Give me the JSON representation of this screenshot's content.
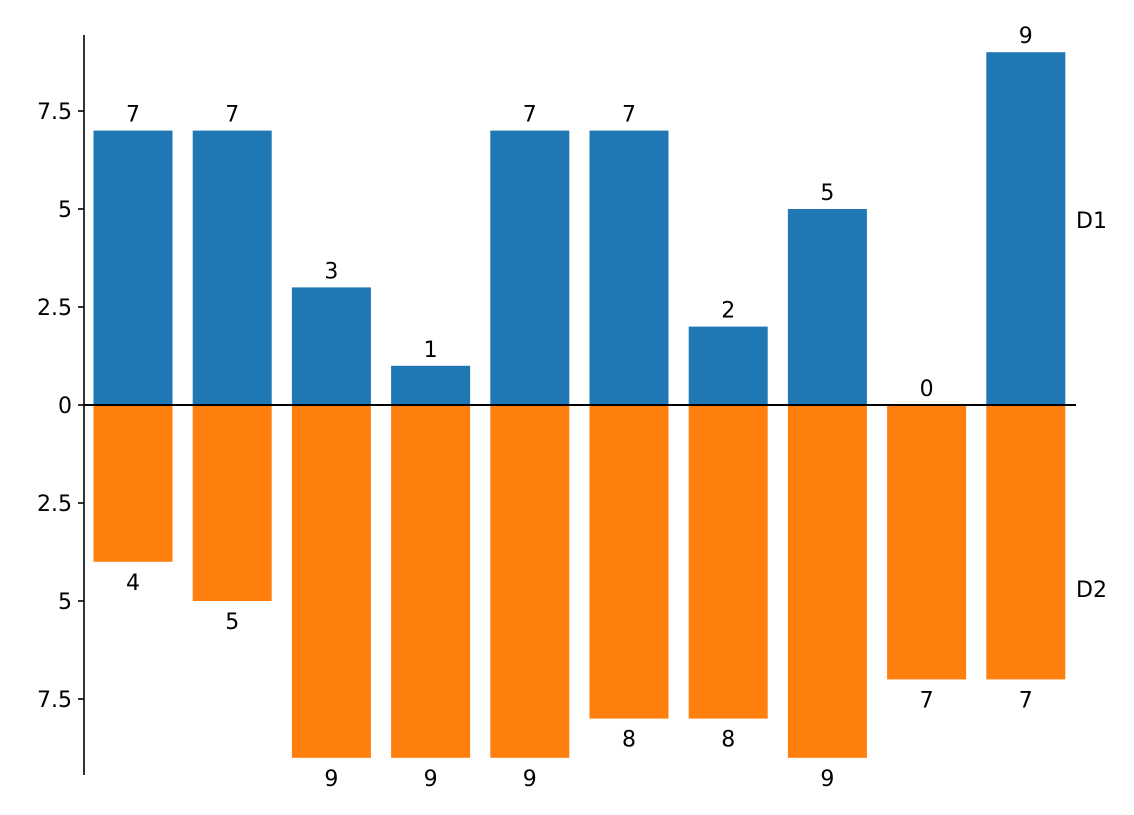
{
  "chart_data": {
    "type": "bar",
    "orientation": "vertical",
    "layout": "diverging",
    "categories": [
      "",
      "",
      "",
      "",
      "",
      "",
      "",
      "",
      "",
      ""
    ],
    "series": [
      {
        "name": "D1",
        "direction": "up",
        "color": "#1f77b4",
        "values": [
          7,
          7,
          3,
          1,
          7,
          7,
          2,
          5,
          0,
          9
        ]
      },
      {
        "name": "D2",
        "direction": "down",
        "color": "#ff7f0e",
        "values": [
          4,
          5,
          9,
          9,
          9,
          8,
          8,
          9,
          7,
          7
        ]
      }
    ],
    "y_ticks": [
      {
        "value": 7.5,
        "label": "7.5"
      },
      {
        "value": 5,
        "label": "5"
      },
      {
        "value": 2.5,
        "label": "2.5"
      },
      {
        "value": 0,
        "label": "0"
      },
      {
        "value": -2.5,
        "label": "2.5"
      },
      {
        "value": -5,
        "label": "5"
      },
      {
        "value": -7.5,
        "label": "7.5"
      }
    ],
    "ylim": [
      -9.45,
      9.45
    ],
    "data_labels": true,
    "legend": "series names at right end of each half",
    "grid": false,
    "title": "",
    "xlabel": "",
    "ylabel": ""
  }
}
